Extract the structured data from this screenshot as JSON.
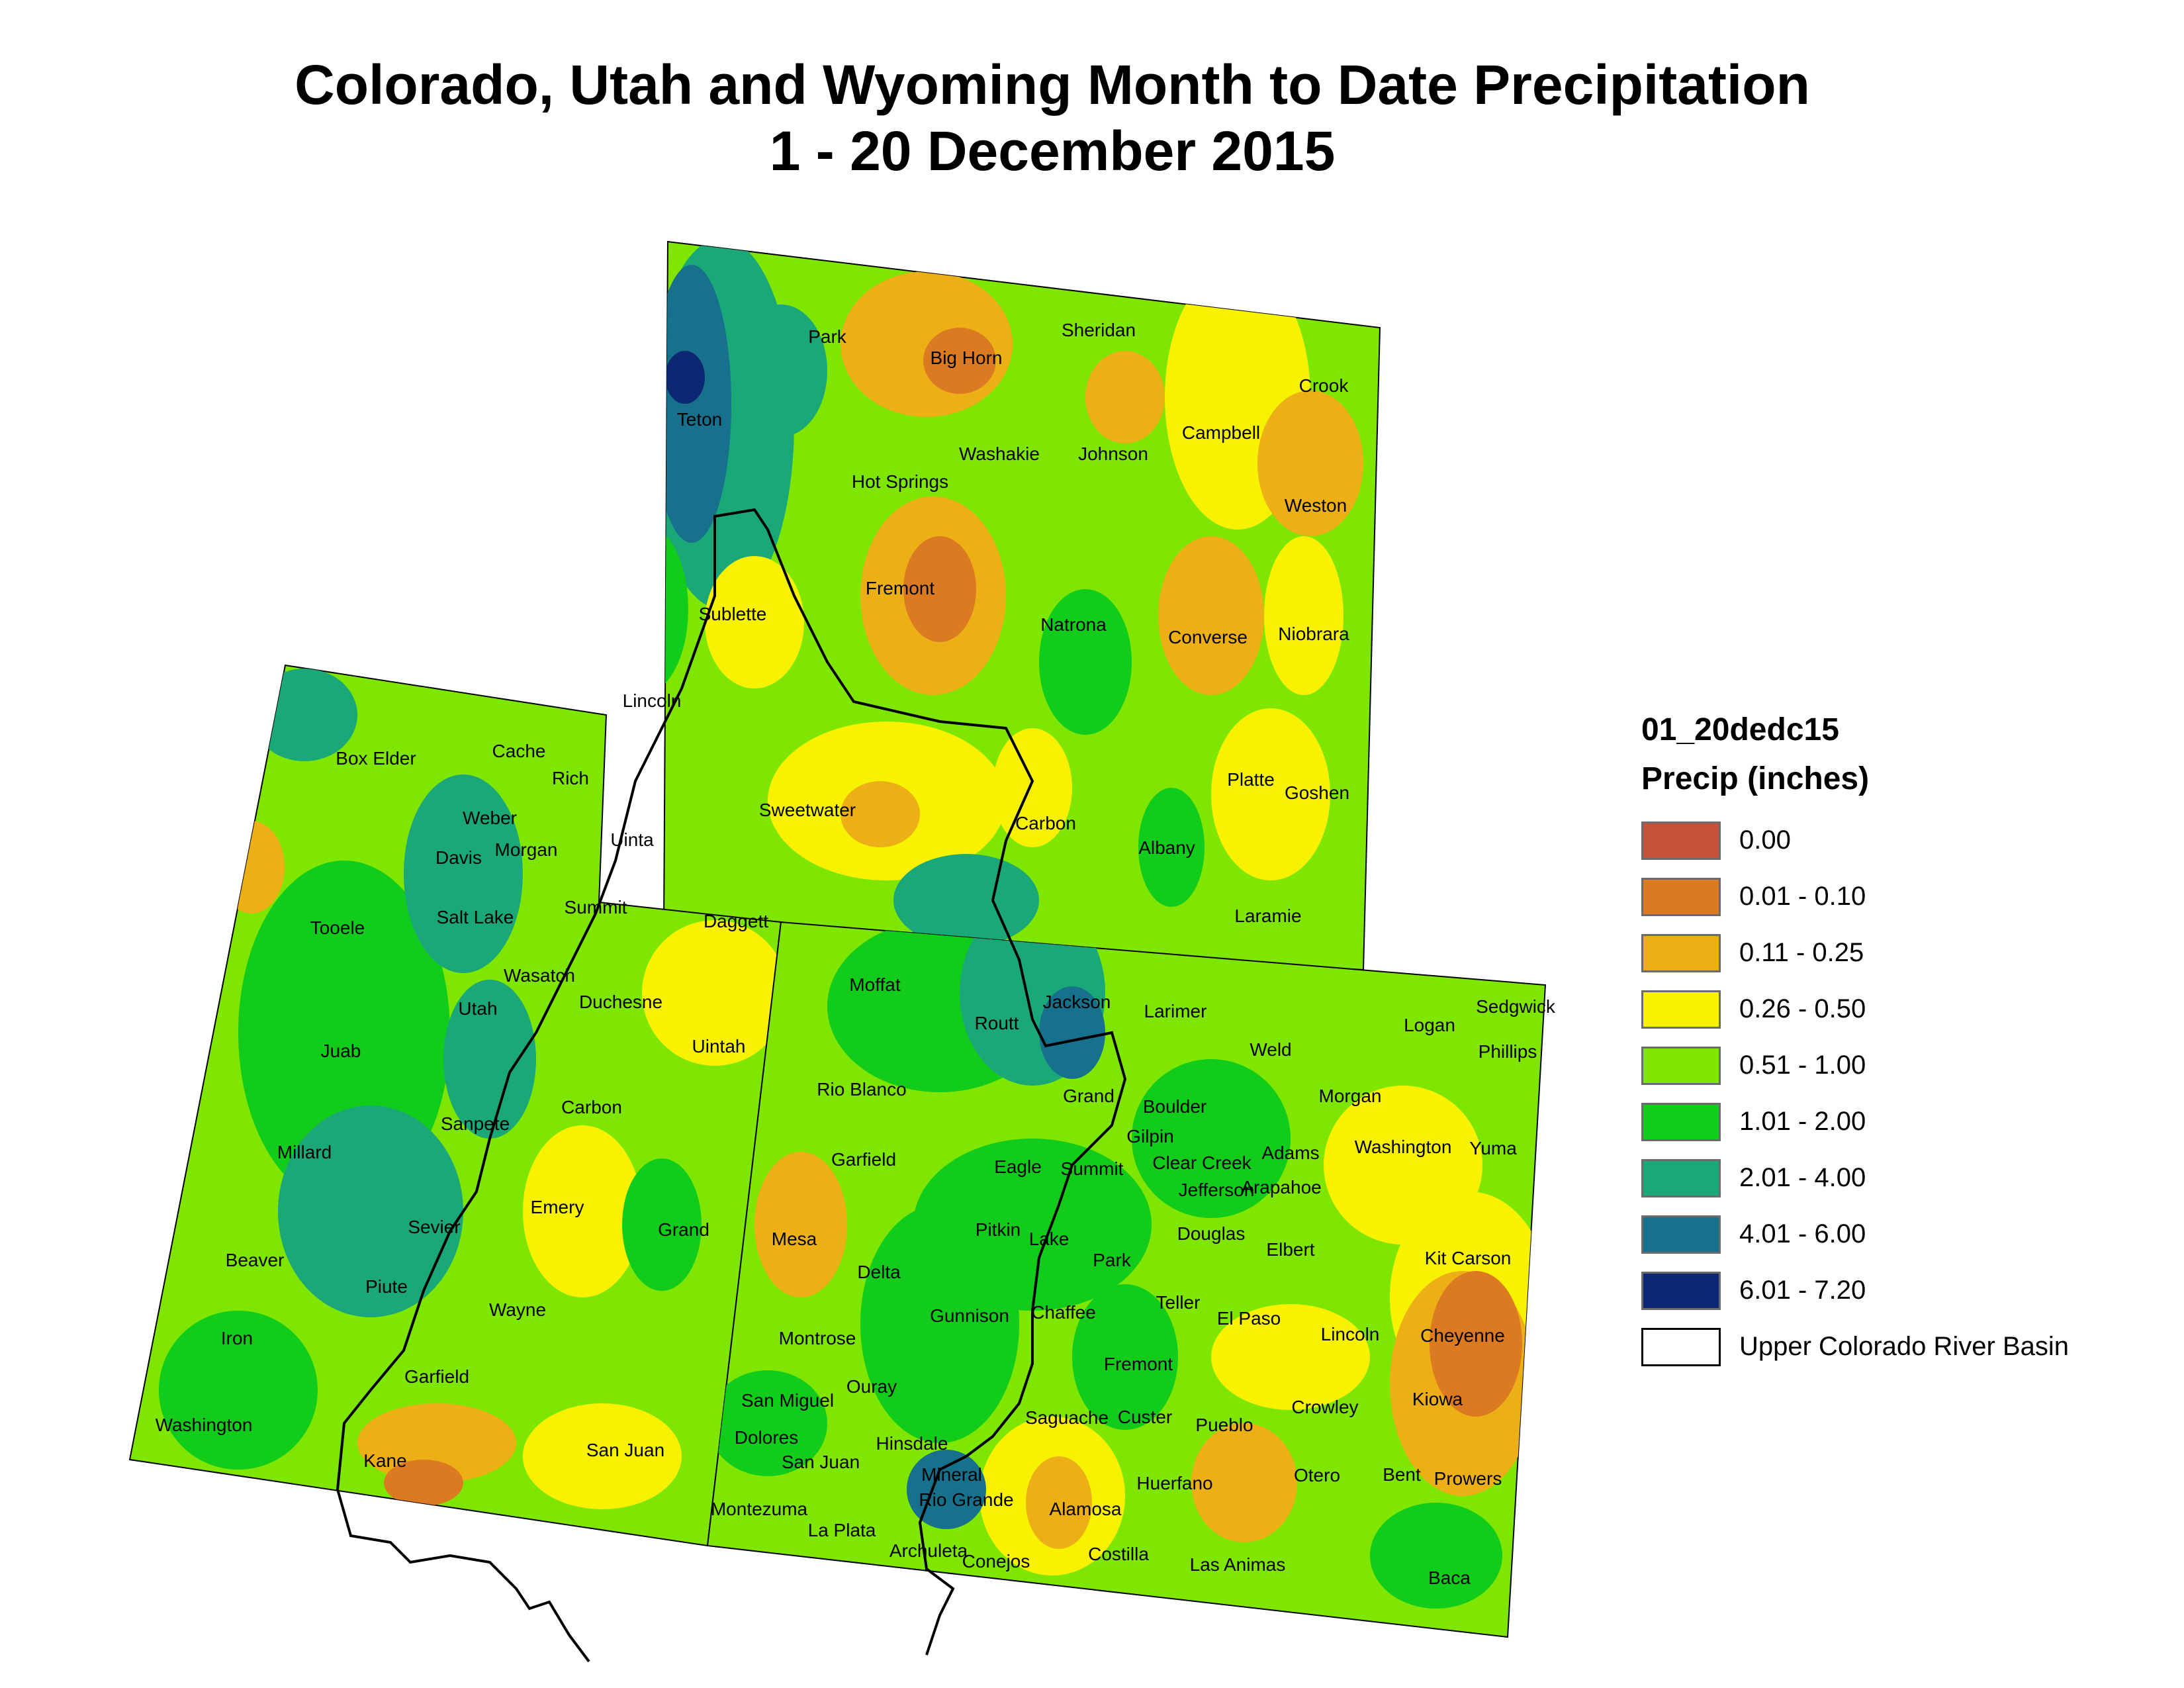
{
  "title_line1": "Colorado, Utah and Wyoming Month to Date Precipitation",
  "title_line2": "1 - 20 December 2015",
  "legend": {
    "layer_name": "01_20dedc15",
    "field_name": "Precip (inches)",
    "classes": [
      {
        "label": "0.00",
        "color": "#c8513a"
      },
      {
        "label": "0.01 - 0.10",
        "color": "#dc7a22"
      },
      {
        "label": "0.11 - 0.25",
        "color": "#ecb016"
      },
      {
        "label": "0.26 - 0.50",
        "color": "#f8f200"
      },
      {
        "label": "0.51 - 1.00",
        "color": "#7ee600"
      },
      {
        "label": "1.01 - 2.00",
        "color": "#12cc1c"
      },
      {
        "label": "2.01 - 4.00",
        "color": "#1aa878"
      },
      {
        "label": "4.01 - 6.00",
        "color": "#17708c"
      },
      {
        "label": "6.01 - 7.20",
        "color": "#0c2872"
      }
    ],
    "basin_label": "Upper Colorado River Basin",
    "basin_color": "#ffffff"
  },
  "map": {
    "states": [
      "Wyoming",
      "Utah",
      "Colorado"
    ],
    "counties": [
      {
        "name": "Park"
      },
      {
        "name": "Big Horn"
      },
      {
        "name": "Sheridan"
      },
      {
        "name": "Crook"
      },
      {
        "name": "Teton"
      },
      {
        "name": "Washakie"
      },
      {
        "name": "Johnson"
      },
      {
        "name": "Campbell"
      },
      {
        "name": "Hot Springs"
      },
      {
        "name": "Weston"
      },
      {
        "name": "Fremont"
      },
      {
        "name": "Sublette"
      },
      {
        "name": "Natrona"
      },
      {
        "name": "Converse"
      },
      {
        "name": "Niobrara"
      },
      {
        "name": "Lincoln"
      },
      {
        "name": "Box Elder"
      },
      {
        "name": "Cache"
      },
      {
        "name": "Rich"
      },
      {
        "name": "Sweetwater"
      },
      {
        "name": "Carbon"
      },
      {
        "name": "Platte"
      },
      {
        "name": "Goshen"
      },
      {
        "name": "Weber"
      },
      {
        "name": "Davis"
      },
      {
        "name": "Morgan"
      },
      {
        "name": "Uinta"
      },
      {
        "name": "Albany"
      },
      {
        "name": "Tooele"
      },
      {
        "name": "Salt Lake"
      },
      {
        "name": "Summit"
      },
      {
        "name": "Daggett"
      },
      {
        "name": "Laramie"
      },
      {
        "name": "Wasatch"
      },
      {
        "name": "Moffat"
      },
      {
        "name": "Sedgwick"
      },
      {
        "name": "Utah"
      },
      {
        "name": "Duchesne"
      },
      {
        "name": "Jackson"
      },
      {
        "name": "Larimer"
      },
      {
        "name": "Logan"
      },
      {
        "name": "Routt"
      },
      {
        "name": "Phillips"
      },
      {
        "name": "Juab"
      },
      {
        "name": "Uintah"
      },
      {
        "name": "Weld"
      },
      {
        "name": "Rio Blanco"
      },
      {
        "name": "Grand"
      },
      {
        "name": "Morgan"
      },
      {
        "name": "Carbon"
      },
      {
        "name": "Boulder"
      },
      {
        "name": "Sanpete"
      },
      {
        "name": "Gilpin"
      },
      {
        "name": "Millard"
      },
      {
        "name": "Garfield"
      },
      {
        "name": "Clear Creek"
      },
      {
        "name": "Adams"
      },
      {
        "name": "Washington"
      },
      {
        "name": "Yuma"
      },
      {
        "name": "Eagle"
      },
      {
        "name": "Summit"
      },
      {
        "name": "Jefferson"
      },
      {
        "name": "Arapahoe"
      },
      {
        "name": "Emery"
      },
      {
        "name": "Sevier"
      },
      {
        "name": "Grand"
      },
      {
        "name": "Pitkin"
      },
      {
        "name": "Douglas"
      },
      {
        "name": "Mesa"
      },
      {
        "name": "Lake"
      },
      {
        "name": "Beaver"
      },
      {
        "name": "Park"
      },
      {
        "name": "Elbert"
      },
      {
        "name": "Kit Carson"
      },
      {
        "name": "Delta"
      },
      {
        "name": "Piute"
      },
      {
        "name": "Wayne"
      },
      {
        "name": "Teller"
      },
      {
        "name": "Gunnison"
      },
      {
        "name": "Chaffee"
      },
      {
        "name": "El Paso"
      },
      {
        "name": "Iron"
      },
      {
        "name": "Montrose"
      },
      {
        "name": "Lincoln"
      },
      {
        "name": "Cheyenne"
      },
      {
        "name": "Fremont"
      },
      {
        "name": "Garfield"
      },
      {
        "name": "Ouray"
      },
      {
        "name": "San Miguel"
      },
      {
        "name": "Kiowa"
      },
      {
        "name": "Crowley"
      },
      {
        "name": "Washington"
      },
      {
        "name": "Saguache"
      },
      {
        "name": "Custer"
      },
      {
        "name": "Pueblo"
      },
      {
        "name": "Kane"
      },
      {
        "name": "Dolores"
      },
      {
        "name": "San Juan"
      },
      {
        "name": "Hinsdale"
      },
      {
        "name": "San Juan"
      },
      {
        "name": "Mineral"
      },
      {
        "name": "Huerfano"
      },
      {
        "name": "Otero"
      },
      {
        "name": "Bent"
      },
      {
        "name": "Prowers"
      },
      {
        "name": "Rio Grande"
      },
      {
        "name": "Alamosa"
      },
      {
        "name": "Montezuma"
      },
      {
        "name": "La Plata"
      },
      {
        "name": "Archuleta"
      },
      {
        "name": "Costilla"
      },
      {
        "name": "Las Animas"
      },
      {
        "name": "Baca"
      },
      {
        "name": "Conejos"
      }
    ]
  }
}
